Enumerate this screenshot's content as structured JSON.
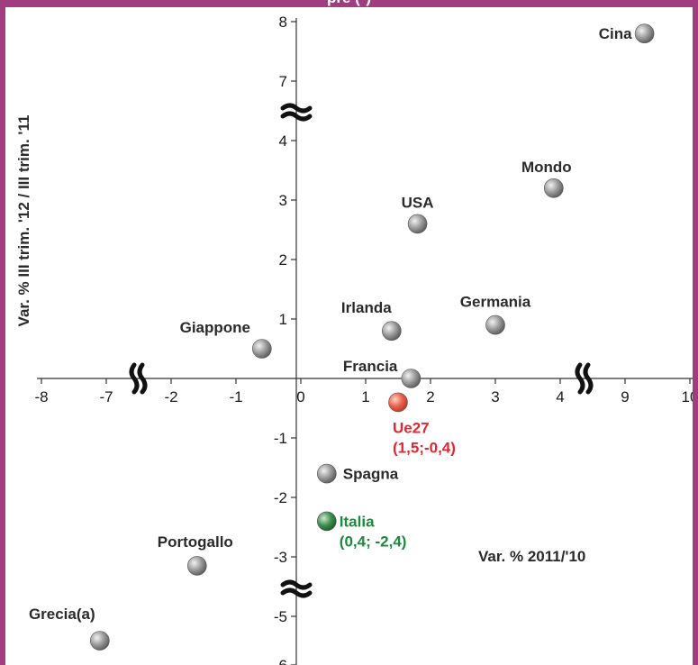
{
  "colors": {
    "frame": "#a03c7f",
    "grey_point": "#9a9a9a",
    "eu_point": "#e8604a",
    "italy_point": "#3e8f4e",
    "eu_text": "#e3262f",
    "italy_text": "#1c8a3c"
  },
  "header": {
    "title": "pre (*)"
  },
  "chart_data": {
    "type": "scatter",
    "xlabel": "Var. % 2011/'10",
    "ylabel": "Var. % III trim. '12 / III trim. '11",
    "x_axis_broken_segments": [
      [
        -8,
        -7
      ],
      [
        -2,
        4
      ],
      [
        9,
        10
      ]
    ],
    "y_axis_broken_segments": [
      [
        -6,
        -5
      ],
      [
        -3,
        4
      ],
      [
        7,
        8
      ]
    ],
    "x_ticks": [
      "-8",
      "-7",
      "-2",
      "-1",
      "0",
      "1",
      "2",
      "3",
      "4",
      "9",
      "10"
    ],
    "y_ticks": [
      "8",
      "7",
      "4",
      "3",
      "2",
      "1",
      "-1",
      "-2",
      "-3",
      "-5",
      "-6"
    ],
    "points": [
      {
        "name": "Cina",
        "x": 9.3,
        "y": 7.8,
        "color": "grey"
      },
      {
        "name": "Mondo",
        "x": 3.9,
        "y": 3.2,
        "color": "grey"
      },
      {
        "name": "USA",
        "x": 1.8,
        "y": 2.6,
        "color": "grey"
      },
      {
        "name": "Germania",
        "x": 3.0,
        "y": 0.9,
        "color": "grey"
      },
      {
        "name": "Irlanda",
        "x": 1.4,
        "y": 0.8,
        "color": "grey"
      },
      {
        "name": "Giappone",
        "x": -0.6,
        "y": 0.5,
        "color": "grey"
      },
      {
        "name": "Francia",
        "x": 1.7,
        "y": 0.0,
        "color": "grey"
      },
      {
        "name": "Ue27",
        "x": 1.5,
        "y": -0.4,
        "color": "eu",
        "value_label": "(1,5;-0,4)"
      },
      {
        "name": "Spagna",
        "x": 0.4,
        "y": -1.6,
        "color": "grey"
      },
      {
        "name": "Italia",
        "x": 0.4,
        "y": -2.4,
        "color": "italy",
        "value_label": "(0,4; -2,4)"
      },
      {
        "name": "Portogallo",
        "x": -1.6,
        "y": -3.3,
        "color": "grey"
      },
      {
        "name": "Grecia(a)",
        "x": -7.1,
        "y": -5.5,
        "color": "grey"
      }
    ]
  }
}
